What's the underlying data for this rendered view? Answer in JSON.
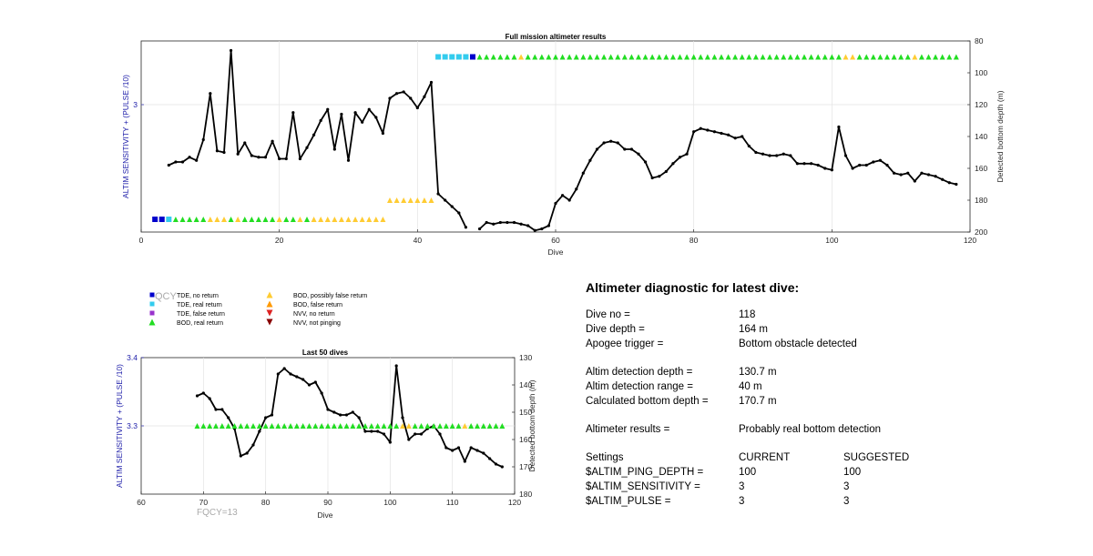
{
  "chart_data": [
    {
      "type": "line",
      "title": "Full mission altimeter results",
      "xlabel": "Dive",
      "ylabel_left": "ALTIM SENSITIVITY + (PULSE /10)",
      "ylabel_right": "Detected bottom depth (m)",
      "xlim": [
        0,
        120
      ],
      "xticks": [
        0,
        20,
        40,
        60,
        80,
        100,
        120
      ],
      "yleft_ticks": [
        "3"
      ],
      "ylim_right": [
        80,
        200
      ],
      "yright_ticks": [
        80,
        100,
        120,
        140,
        160,
        180,
        200
      ],
      "y_right_reversed": true,
      "grid": true,
      "series": [
        {
          "kind": "bottom_depth_line",
          "color": "#000000",
          "x": [
            4,
            5,
            6,
            7,
            8,
            9,
            10,
            11,
            12,
            13,
            14,
            15,
            16,
            17,
            18,
            19,
            20,
            21,
            22,
            23,
            24,
            25,
            26,
            27,
            28,
            29,
            30,
            31,
            32,
            33,
            34,
            35,
            36,
            37,
            38,
            39,
            40,
            41,
            42,
            43,
            44,
            45,
            46,
            47,
            48,
            49,
            50,
            51,
            52,
            53,
            54,
            55,
            56,
            57,
            58,
            59,
            60,
            61,
            62,
            63,
            64,
            65,
            66,
            67,
            68,
            69,
            70,
            71,
            72,
            73,
            74,
            75,
            76,
            77,
            78,
            79,
            80,
            81,
            82,
            83,
            84,
            85,
            86,
            87,
            88,
            89,
            90,
            91,
            92,
            93,
            94,
            95,
            96,
            97,
            98,
            99,
            100,
            101,
            102,
            103,
            104,
            105,
            106,
            107,
            108,
            109,
            110,
            111,
            112,
            113,
            114,
            115,
            116,
            117,
            118
          ],
          "y": [
            158,
            156,
            156,
            153,
            155,
            142,
            113,
            149,
            150,
            86,
            151,
            144,
            152,
            153,
            153,
            143,
            154,
            154,
            125,
            154,
            147,
            139,
            130,
            123,
            148,
            126,
            155,
            125,
            131,
            123,
            128,
            138,
            116,
            113,
            112,
            116,
            122,
            115,
            106,
            176,
            180,
            184,
            188,
            197,
            null,
            198,
            194,
            195,
            194,
            194,
            194,
            195,
            196,
            199,
            198,
            196,
            182,
            177,
            180,
            173,
            163,
            155,
            148,
            144,
            143,
            144,
            148,
            148,
            151,
            156,
            166,
            165,
            162,
            157,
            153,
            151,
            137,
            135,
            136,
            137,
            138,
            139,
            141,
            140,
            146,
            150,
            151,
            152,
            152,
            151,
            152,
            157,
            157,
            157,
            158,
            160,
            161,
            134,
            152,
            160,
            158,
            158,
            156,
            155,
            158,
            163,
            164,
            163,
            168,
            163,
            164,
            165,
            167,
            169,
            170
          ]
        },
        {
          "kind": "markers",
          "legend": "TDE, no return",
          "marker": "square",
          "color": "#0000cc",
          "x": [
            2,
            3,
            48
          ],
          "y": [
            192,
            192,
            90
          ]
        },
        {
          "kind": "markers",
          "legend": "TDE, real return",
          "marker": "square",
          "color": "#33ccee",
          "x": [
            4,
            43,
            44,
            45,
            46,
            47
          ],
          "y": [
            192,
            90,
            90,
            90,
            90,
            90
          ]
        },
        {
          "kind": "markers",
          "legend": "BOD, real return",
          "marker": "triangle-up",
          "color": "#22dd22",
          "x": [
            5,
            6,
            7,
            8,
            9,
            13,
            15,
            16,
            17,
            18,
            19,
            21,
            22,
            24,
            49,
            50,
            51,
            52,
            53,
            54,
            56,
            57,
            58,
            59,
            60,
            61,
            62,
            63,
            64,
            65,
            66,
            67,
            68,
            69,
            70,
            71,
            72,
            73,
            74,
            75,
            76,
            77,
            78,
            79,
            80,
            81,
            82,
            83,
            84,
            85,
            86,
            87,
            88,
            89,
            90,
            91,
            92,
            93,
            94,
            95,
            96,
            97,
            98,
            99,
            100,
            101,
            104,
            105,
            106,
            107,
            108,
            109,
            110,
            111,
            113,
            114,
            115,
            116,
            117,
            118
          ],
          "y": [
            192,
            192,
            192,
            192,
            192,
            192,
            192,
            192,
            192,
            192,
            192,
            192,
            192,
            192,
            90,
            90,
            90,
            90,
            90,
            90,
            90,
            90,
            90,
            90,
            90,
            90,
            90,
            90,
            90,
            90,
            90,
            90,
            90,
            90,
            90,
            90,
            90,
            90,
            90,
            90,
            90,
            90,
            90,
            90,
            90,
            90,
            90,
            90,
            90,
            90,
            90,
            90,
            90,
            90,
            90,
            90,
            90,
            90,
            90,
            90,
            90,
            90,
            90,
            90,
            90,
            90,
            90,
            90,
            90,
            90,
            90,
            90,
            90,
            90,
            90,
            90,
            90,
            90,
            90,
            90
          ]
        },
        {
          "kind": "markers",
          "legend": "BOD, possibly false return",
          "marker": "triangle-up",
          "color": "#ffcc33",
          "x": [
            10,
            11,
            12,
            14,
            20,
            23,
            25,
            26,
            27,
            28,
            29,
            30,
            31,
            32,
            33,
            34,
            35,
            36,
            37,
            38,
            39,
            40,
            41,
            42,
            55,
            102,
            103,
            112
          ],
          "y": [
            192,
            192,
            192,
            192,
            192,
            192,
            192,
            192,
            192,
            192,
            192,
            192,
            192,
            192,
            192,
            192,
            192,
            180,
            180,
            180,
            180,
            180,
            180,
            180,
            90,
            90,
            90,
            90
          ]
        }
      ]
    },
    {
      "type": "line",
      "title": "Last 50 dives",
      "xlabel": "Dive",
      "ylabel_left": "ALTIM SENSITIVITY + (PULSE /10)",
      "ylabel_right": "Detected bottom depth (m)",
      "xlim": [
        60,
        120
      ],
      "xticks": [
        60,
        70,
        80,
        90,
        100,
        110,
        120
      ],
      "ylim_left": [
        3.2,
        3.4
      ],
      "yleft_ticks": [
        "3.3",
        "3.4"
      ],
      "ylim_right": [
        130,
        180
      ],
      "yright_ticks": [
        130,
        140,
        150,
        160,
        170,
        180
      ],
      "y_right_reversed": true,
      "grid": true,
      "series": [
        {
          "kind": "bottom_depth_line",
          "color": "#000000",
          "x": [
            69,
            70,
            71,
            72,
            73,
            74,
            75,
            76,
            77,
            78,
            79,
            80,
            81,
            82,
            83,
            84,
            85,
            86,
            87,
            88,
            89,
            90,
            91,
            92,
            93,
            94,
            95,
            96,
            97,
            98,
            99,
            100,
            101,
            102,
            103,
            104,
            105,
            106,
            107,
            108,
            109,
            110,
            111,
            112,
            113,
            114,
            115,
            116,
            117,
            118
          ],
          "y": [
            144,
            143,
            145,
            149,
            149,
            152,
            156,
            166,
            165,
            162,
            157,
            152,
            151,
            136,
            134,
            136,
            137,
            138,
            140,
            139,
            143,
            149,
            150,
            151,
            151,
            150,
            152,
            157,
            157,
            157,
            158,
            161,
            133,
            152,
            160,
            158,
            158,
            156,
            155,
            158,
            163,
            164,
            163,
            168,
            163,
            164,
            165,
            167,
            169,
            170
          ]
        },
        {
          "kind": "markers",
          "legend": "BOD, real return",
          "marker": "triangle-up",
          "color": "#22dd22",
          "x": [
            69,
            70,
            71,
            72,
            73,
            74,
            75,
            76,
            77,
            78,
            79,
            80,
            81,
            82,
            83,
            84,
            85,
            86,
            87,
            88,
            89,
            90,
            91,
            92,
            93,
            94,
            95,
            96,
            97,
            98,
            99,
            100,
            101,
            104,
            105,
            106,
            107,
            108,
            109,
            110,
            111,
            113,
            114,
            115,
            116,
            117,
            118
          ],
          "y": [
            3.3,
            3.3,
            3.3,
            3.3,
            3.3,
            3.3,
            3.3,
            3.3,
            3.3,
            3.3,
            3.3,
            3.3,
            3.3,
            3.3,
            3.3,
            3.3,
            3.3,
            3.3,
            3.3,
            3.3,
            3.3,
            3.3,
            3.3,
            3.3,
            3.3,
            3.3,
            3.3,
            3.3,
            3.3,
            3.3,
            3.3,
            3.3,
            3.3,
            3.3,
            3.3,
            3.3,
            3.3,
            3.3,
            3.3,
            3.3,
            3.3,
            3.3,
            3.3,
            3.3,
            3.3,
            3.3,
            3.3
          ]
        },
        {
          "kind": "markers",
          "legend": "BOD, possibly false return",
          "marker": "triangle-up",
          "color": "#ffcc33",
          "x": [
            102,
            103,
            112
          ],
          "y": [
            3.3,
            3.3,
            3.3
          ]
        }
      ],
      "annotation": "FQCY=13"
    }
  ],
  "legend": {
    "overlap_text": "QCY",
    "items": [
      {
        "label": "TDE, no return",
        "marker": "square",
        "color": "#0000cc"
      },
      {
        "label": "TDE, real return",
        "marker": "square",
        "color": "#33ccee"
      },
      {
        "label": "TDE, false return",
        "marker": "square",
        "color": "#9933cc"
      },
      {
        "label": "BOD, real return",
        "marker": "triangle-up",
        "color": "#22dd22"
      },
      {
        "label": "BOD, possibly false return",
        "marker": "triangle-up",
        "color": "#ffcc33"
      },
      {
        "label": "BOD, false return",
        "marker": "triangle-up",
        "color": "#ff9900"
      },
      {
        "label": "NVV, no return",
        "marker": "triangle-down",
        "color": "#dd2222"
      },
      {
        "label": "NVV, not pinging",
        "marker": "triangle-down",
        "color": "#880000"
      }
    ]
  },
  "diagnostic": {
    "title": "Altimeter diagnostic for latest dive:",
    "dive_no_label": "Dive no =",
    "dive_no": "118",
    "dive_depth_label": "Dive depth =",
    "dive_depth": "164 m",
    "apogee_label": "Apogee trigger =",
    "apogee": "Bottom obstacle detected",
    "detect_depth_label": "Altim detection depth =",
    "detect_depth": "130.7 m",
    "detect_range_label": "Altim detection range =",
    "detect_range": "40 m",
    "calc_depth_label": "Calculated bottom depth =",
    "calc_depth": "170.7 m",
    "results_label": "Altimeter results =",
    "results": "Probably real bottom detection",
    "settings_label": "Settings",
    "current_label": "CURRENT",
    "suggested_label": "SUGGESTED",
    "settings": [
      {
        "name": "$ALTIM_PING_DEPTH =",
        "current": "100",
        "suggested": "100"
      },
      {
        "name": "$ALTIM_SENSITIVITY =",
        "current": "3",
        "suggested": "3"
      },
      {
        "name": "$ALTIM_PULSE =",
        "current": "3",
        "suggested": "3"
      }
    ]
  }
}
